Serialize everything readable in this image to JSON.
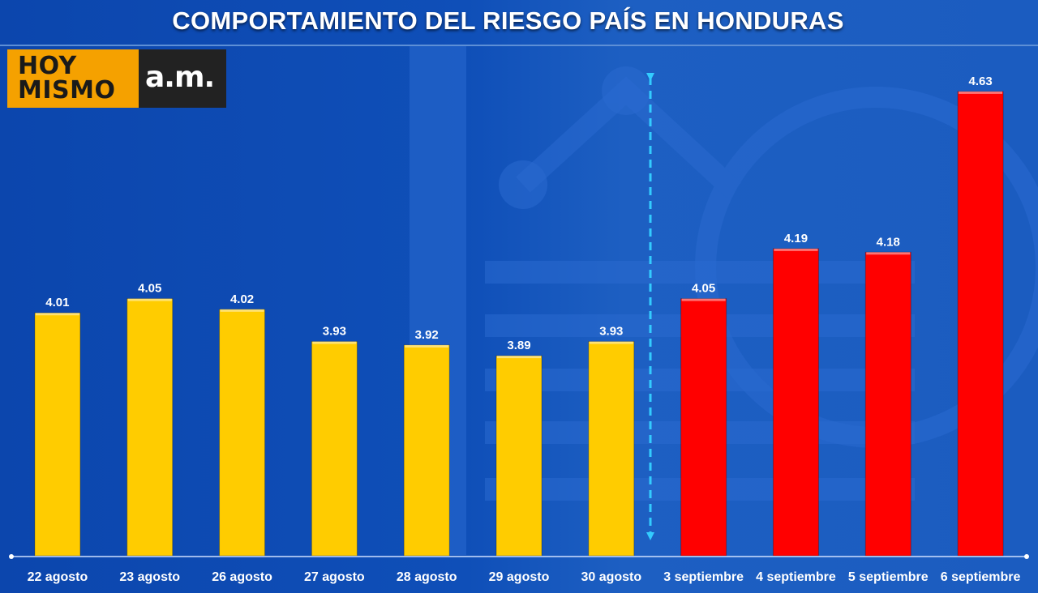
{
  "title": "COMPORTAMIENTO DEL RIESGO PAÍS EN HONDURAS",
  "logo": {
    "line1": "HOY",
    "line2": "MISMO",
    "right": "a.m."
  },
  "colors": {
    "before": "#ffcc00",
    "after": "#ff0000",
    "divider": "#33ccff"
  },
  "chart_data": {
    "type": "bar",
    "title": "COMPORTAMIENTO DEL RIESGO PAÍS EN HONDURAS",
    "categories": [
      "22 agosto",
      "23 agosto",
      "26 agosto",
      "27 agosto",
      "28 agosto",
      "29 agosto",
      "30 agosto",
      "3 septiembre",
      "4 septiembre",
      "5 septiembre",
      "6 septiembre"
    ],
    "values": [
      4.01,
      4.05,
      4.02,
      3.93,
      3.92,
      3.89,
      3.93,
      4.05,
      4.19,
      4.18,
      4.63
    ],
    "value_labels": [
      "4.01",
      "4.05",
      "4.02",
      "3.93",
      "3.92",
      "3.89",
      "3.93",
      "4.05",
      "4.19",
      "4.18",
      "4.63"
    ],
    "bar_colors": [
      "#ffcc00",
      "#ffcc00",
      "#ffcc00",
      "#ffcc00",
      "#ffcc00",
      "#ffcc00",
      "#ffcc00",
      "#ff0000",
      "#ff0000",
      "#ff0000",
      "#ff0000"
    ],
    "ylim": [
      3.33,
      4.75
    ],
    "xlabel": "",
    "ylabel": "",
    "grid": false,
    "legend": "none"
  }
}
